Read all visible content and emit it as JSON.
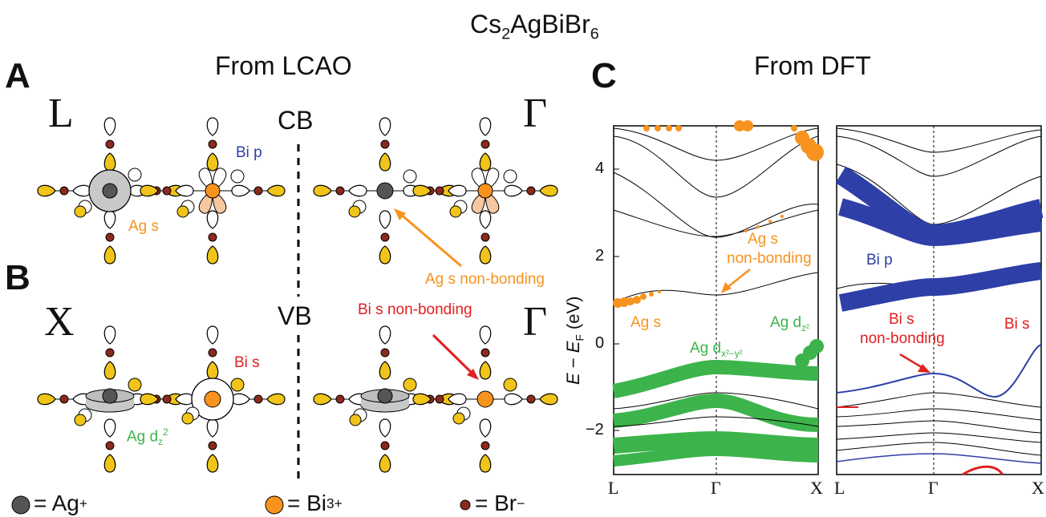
{
  "title": {
    "main": "Cs",
    "s1": "2",
    "mid": "AgBiBr",
    "s2": "6"
  },
  "panels": {
    "a": "A",
    "b": "B",
    "c": "C"
  },
  "lcao_title": "From LCAO",
  "dft_title": "From DFT",
  "k_points": {
    "L": "L",
    "X": "X",
    "G_top": "Γ",
    "G_bot": "Γ"
  },
  "bands": {
    "cb": "CB",
    "vb": "VB"
  },
  "lcao_labels": {
    "bi_p": "Bi p",
    "ag_s": "Ag s",
    "ag_s_nb": "Ag s non-bonding",
    "bi_s_nb": "Bi s non-bonding",
    "bi_s": "Bi s",
    "ag_d_base": "Ag d",
    "ag_d_sub": "z",
    "ag_d_sup": "2"
  },
  "legend": {
    "ag": "= Ag",
    "ag_charge": "+",
    "bi": "= Bi",
    "bi_charge": "3+",
    "br": "= Br",
    "br_charge": "−"
  },
  "dft_labels": {
    "ag_s_nb_1": "Ag s",
    "ag_s_nb_2": "non-bonding",
    "ag_s": "Ag s",
    "ag_dz2_base": "Ag d",
    "ag_dz2_sub": "z²",
    "ag_dx2y2_base": "Ag d",
    "ag_dx2y2_sub": "x²−y²",
    "bi_p": "Bi p",
    "bi_s_nb_1": "Bi s",
    "bi_s_nb_2": "non-bonding",
    "bi_s": "Bi s"
  },
  "axes": {
    "ylabel": {
      "e": "E",
      "dash": " − ",
      "ef": "E",
      "sub": "F",
      "unit": " (eV)"
    },
    "yticks": [
      "4",
      "2",
      "0",
      "−2"
    ],
    "xticks": [
      "L",
      "Γ",
      "X"
    ],
    "ylim": [
      -3,
      5
    ]
  },
  "colors": {
    "ag": "#555555",
    "bi": "#f7931e",
    "br": "#8b2a1c",
    "green": "#3cb44b",
    "blue": "#2e3fa8",
    "red": "#e02020",
    "orange": "#f7931e",
    "yellow": "#f0c419",
    "peach": "#f7c7a0"
  }
}
